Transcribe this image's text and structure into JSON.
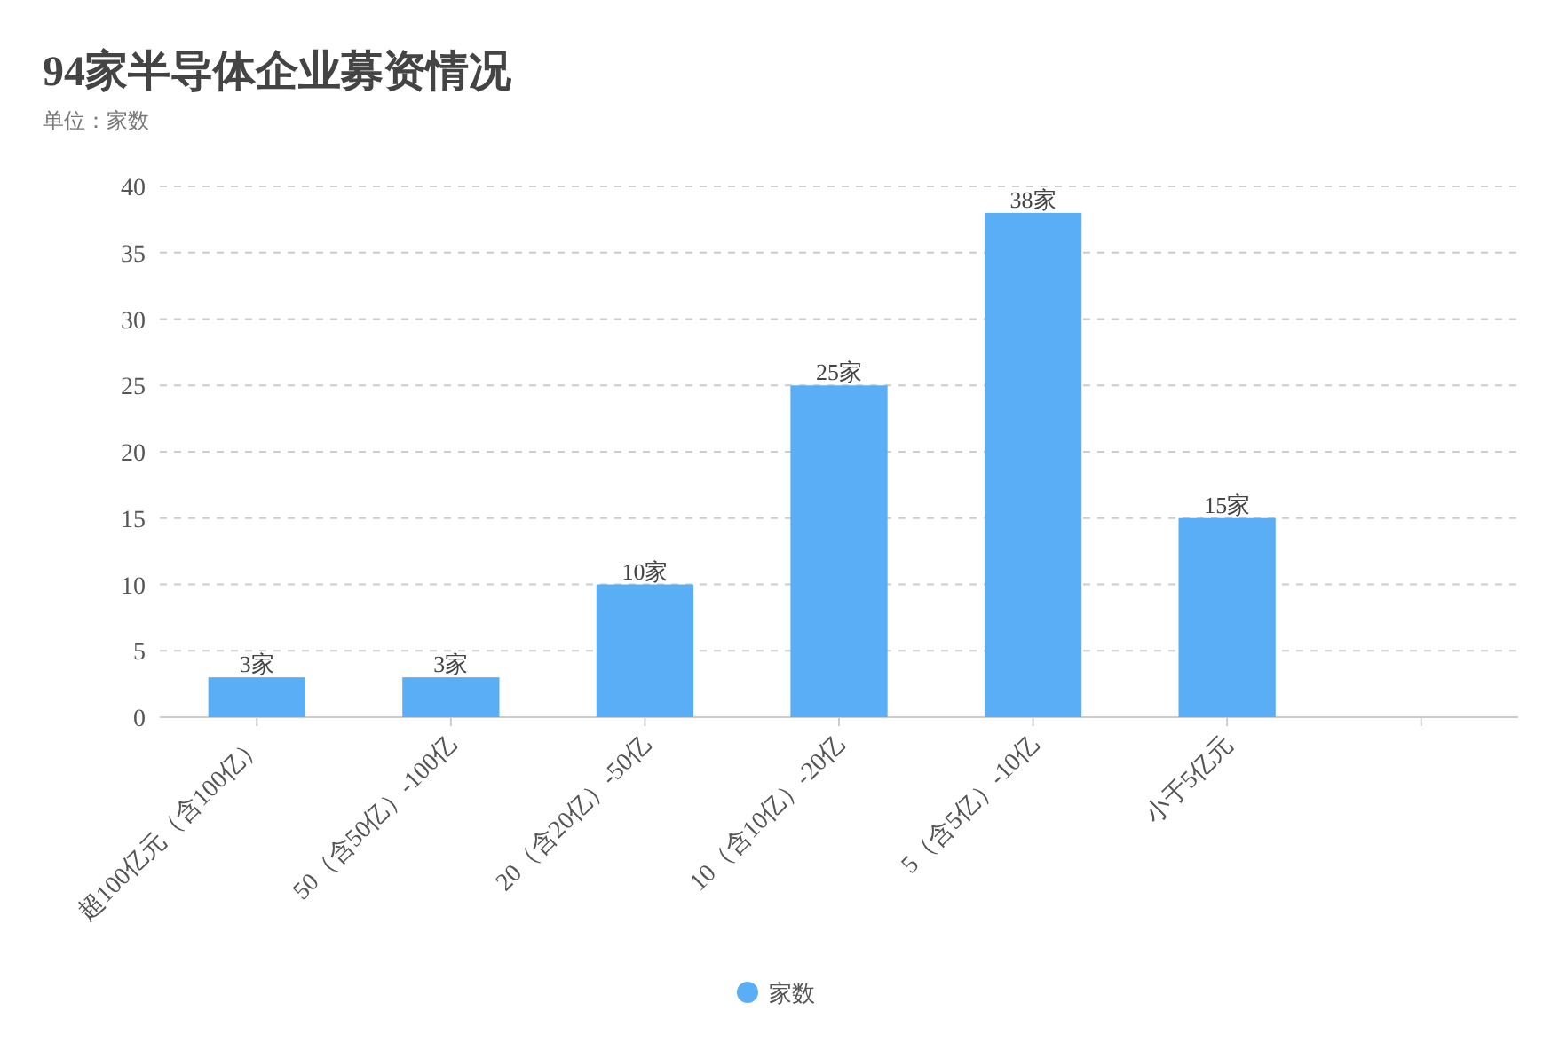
{
  "chart_data": {
    "type": "bar",
    "title": "94家半导体企业募资情况",
    "subtitle": "单位：家数",
    "categories": [
      "超100亿元（含100亿）",
      "50（含50亿）-100亿",
      "20（含20亿）-50亿",
      "10（含10亿）-20亿",
      "5（含5亿）-10亿",
      "小于5亿元",
      null
    ],
    "series": [
      {
        "name": "家数",
        "color": "#5aaef5",
        "values": [
          3,
          3,
          10,
          25,
          38,
          15,
          null
        ],
        "value_labels": [
          "3家",
          "3家",
          "10家",
          "25家",
          "38家",
          "15家",
          null
        ]
      }
    ],
    "ylim": [
      0,
      40
    ],
    "yticks": [
      0,
      5,
      10,
      15,
      20,
      25,
      30,
      35,
      40
    ],
    "grid": "y",
    "legend": "bottom"
  }
}
